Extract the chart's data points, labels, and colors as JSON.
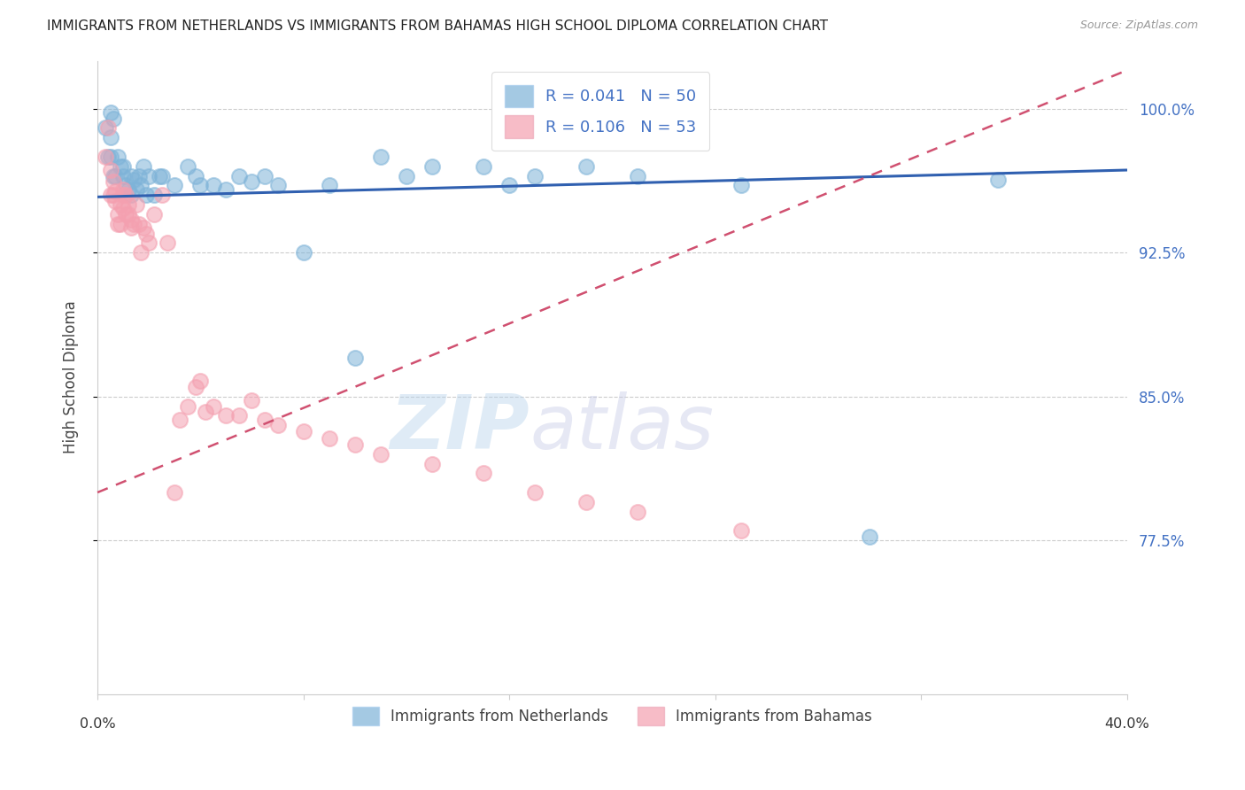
{
  "title": "IMMIGRANTS FROM NETHERLANDS VS IMMIGRANTS FROM BAHAMAS HIGH SCHOOL DIPLOMA CORRELATION CHART",
  "source": "Source: ZipAtlas.com",
  "ylabel": "High School Diploma",
  "ytick_vals": [
    1.0,
    0.925,
    0.85,
    0.775
  ],
  "ytick_labels": [
    "100.0%",
    "92.5%",
    "85.0%",
    "77.5%"
  ],
  "xlim": [
    0.0,
    0.4
  ],
  "ylim": [
    0.695,
    1.025
  ],
  "netherlands_color": "#7eb3d8",
  "bahamas_color": "#f4a0b0",
  "trendline_nl_color": "#3060b0",
  "trendline_bh_color": "#d05070",
  "watermark_zip": "ZIP",
  "watermark_atlas": "atlas",
  "background_color": "#ffffff",
  "nl_R": 0.041,
  "nl_N": 50,
  "bh_R": 0.106,
  "bh_N": 53,
  "nl_trend_x0": 0.0,
  "nl_trend_y0": 0.954,
  "nl_trend_x1": 0.4,
  "nl_trend_y1": 0.968,
  "bh_trend_x0": 0.0,
  "bh_trend_y0": 0.8,
  "bh_trend_x1": 0.4,
  "bh_trend_y1": 1.02,
  "netherlands_x": [
    0.003,
    0.004,
    0.005,
    0.005,
    0.005,
    0.006,
    0.006,
    0.007,
    0.008,
    0.009,
    0.01,
    0.01,
    0.011,
    0.012,
    0.013,
    0.013,
    0.014,
    0.015,
    0.016,
    0.017,
    0.018,
    0.019,
    0.02,
    0.022,
    0.024,
    0.025,
    0.03,
    0.035,
    0.038,
    0.04,
    0.045,
    0.05,
    0.055,
    0.06,
    0.065,
    0.07,
    0.08,
    0.09,
    0.1,
    0.11,
    0.12,
    0.13,
    0.15,
    0.16,
    0.17,
    0.19,
    0.21,
    0.25,
    0.3,
    0.35
  ],
  "netherlands_y": [
    0.99,
    0.975,
    0.998,
    0.985,
    0.975,
    0.965,
    0.995,
    0.965,
    0.975,
    0.97,
    0.97,
    0.965,
    0.96,
    0.958,
    0.965,
    0.955,
    0.963,
    0.958,
    0.965,
    0.96,
    0.97,
    0.955,
    0.965,
    0.955,
    0.965,
    0.965,
    0.96,
    0.97,
    0.965,
    0.96,
    0.96,
    0.958,
    0.965,
    0.962,
    0.965,
    0.96,
    0.925,
    0.96,
    0.87,
    0.975,
    0.965,
    0.97,
    0.97,
    0.96,
    0.965,
    0.97,
    0.965,
    0.96,
    0.777,
    0.963
  ],
  "bahamas_x": [
    0.003,
    0.004,
    0.005,
    0.005,
    0.006,
    0.006,
    0.007,
    0.007,
    0.008,
    0.008,
    0.009,
    0.009,
    0.01,
    0.01,
    0.01,
    0.011,
    0.011,
    0.012,
    0.012,
    0.013,
    0.013,
    0.014,
    0.015,
    0.016,
    0.017,
    0.018,
    0.019,
    0.02,
    0.022,
    0.025,
    0.027,
    0.03,
    0.032,
    0.035,
    0.038,
    0.04,
    0.042,
    0.045,
    0.05,
    0.055,
    0.06,
    0.065,
    0.07,
    0.08,
    0.09,
    0.1,
    0.11,
    0.13,
    0.15,
    0.17,
    0.19,
    0.21,
    0.25
  ],
  "bahamas_y": [
    0.975,
    0.99,
    0.955,
    0.968,
    0.962,
    0.955,
    0.957,
    0.952,
    0.945,
    0.94,
    0.94,
    0.95,
    0.955,
    0.958,
    0.948,
    0.955,
    0.945,
    0.95,
    0.945,
    0.942,
    0.938,
    0.94,
    0.95,
    0.94,
    0.925,
    0.938,
    0.935,
    0.93,
    0.945,
    0.955,
    0.93,
    0.8,
    0.838,
    0.845,
    0.855,
    0.858,
    0.842,
    0.845,
    0.84,
    0.84,
    0.848,
    0.838,
    0.835,
    0.832,
    0.828,
    0.825,
    0.82,
    0.815,
    0.81,
    0.8,
    0.795,
    0.79,
    0.78
  ]
}
